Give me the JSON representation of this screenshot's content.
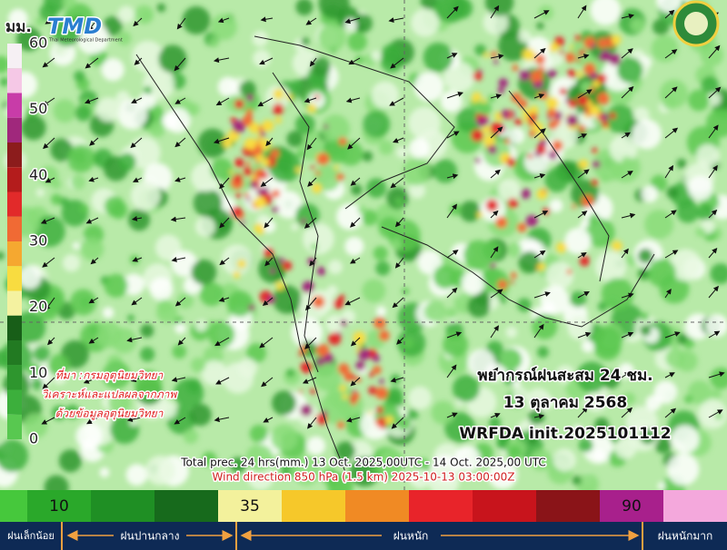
{
  "header": {
    "unit": "มม.",
    "logo_text": "TMD",
    "logo_subtext": "Thai Meteorological Department"
  },
  "scale_left": {
    "ticks": [
      60,
      50,
      40,
      30,
      20,
      10,
      0
    ],
    "colors": [
      "#f6f0f4",
      "#f5c8e6",
      "#c83ca8",
      "#a0287c",
      "#8c1c1c",
      "#b41c1c",
      "#e22a2a",
      "#f06a34",
      "#f5a830",
      "#f8dc40",
      "#f4f2a0",
      "#185e18",
      "#227a22",
      "#2e962e",
      "#3caf3c",
      "#58c850"
    ]
  },
  "source": [
    "ที่มา :กรมอุตุนิยมวิทยา",
    "วิเคราะห์และแปลผลจากภาพ",
    "ด้วยข้อมูลอุตุนิยมวิทยา"
  ],
  "forecast": {
    "title": "พยากรณ์ฝนสะสม 24 ชม.",
    "date": "13 ตุลาคม 2568",
    "model": "WRFDA init.2025101112"
  },
  "footer_notes": [
    "Total prec. 24 hrs(mm.) 13 Oct. 2025,00UTC - 14 Oct. 2025,00 UTC",
    "Wind direction 850 hPa (1.5 km) 2025-10-13 03:00:00Z"
  ],
  "scale_bottom": {
    "colors": [
      "#46c83c",
      "#2aa82a",
      "#1f8f24",
      "#176a1c",
      "#f3f19c",
      "#f6c82a",
      "#f08a24",
      "#e8242a",
      "#c8141c",
      "#8a1418",
      "#a8208c",
      "#f4a8dc"
    ],
    "labels": [
      null,
      10,
      null,
      null,
      35,
      null,
      null,
      null,
      null,
      null,
      90,
      null
    ]
  },
  "categories": [
    "ฝนเล็กน้อย",
    "ฝนปานกลาง",
    "ฝนหนัก",
    "ฝนหนักมาก"
  ]
}
